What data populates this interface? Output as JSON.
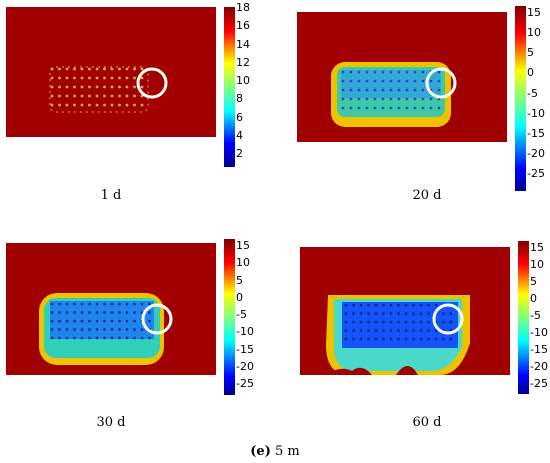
{
  "figure_caption": {
    "label": "(e)",
    "text": "5 m"
  },
  "panels": [
    {
      "caption": "1 d",
      "colorbar": {
        "ticks": [
          "18",
          "16",
          "14",
          "12",
          "10",
          "8",
          "6",
          "4",
          "2"
        ]
      }
    },
    {
      "caption": "20 d",
      "colorbar": {
        "ticks": [
          "15",
          "10",
          "5",
          "0",
          "-5",
          "-10",
          "-15",
          "-20",
          "-25"
        ]
      }
    },
    {
      "caption": "30 d",
      "colorbar": {
        "ticks": [
          "15",
          "10",
          "5",
          "0",
          "-5",
          "-10",
          "-15",
          "-20",
          "-25"
        ]
      }
    },
    {
      "caption": "60 d",
      "colorbar": {
        "ticks": [
          "15",
          "10",
          "5",
          "0",
          "-5",
          "-10",
          "-15",
          "-20",
          "-25"
        ]
      }
    }
  ],
  "colors": {
    "background_field": "#a00000",
    "pipe_ring": "#ffffff"
  }
}
